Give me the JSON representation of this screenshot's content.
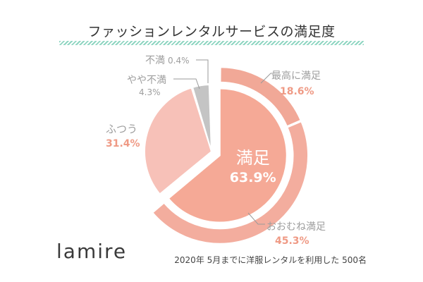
{
  "title": "ファッションレンタルサービスの満足度",
  "brand": "lamire",
  "footnote": "2020年 5月までに洋服レンタルを利用した 500名",
  "colors": {
    "satisfied": "#f5a996",
    "very_satisfied": "#f1a897",
    "somewhat_satisfied": "#f3ad9e",
    "neutral": "#f7c1b8",
    "somewhat_dissatisfied": "#c4c4c4",
    "dissatisfied": "#d0d0d0",
    "accent_text": "#ef9a85",
    "gray_text": "#9e9e9e",
    "stripe": "#8fd6c2"
  },
  "chart_data": {
    "type": "pie",
    "title": "ファッションレンタルサービスの満足度",
    "inner": [
      {
        "label": "満足",
        "value": 63.9,
        "value_label": "63.9%"
      },
      {
        "label": "ふつう",
        "value": 31.4,
        "value_label": "31.4%"
      },
      {
        "label": "やや不満",
        "value": 4.3,
        "value_label": "4.3%"
      },
      {
        "label": "不満",
        "value": 0.4,
        "value_label": "0.4%"
      }
    ],
    "outer": [
      {
        "label": "最高に満足",
        "value": 18.6,
        "value_label": "18.6%",
        "parent": "満足"
      },
      {
        "label": "おおむね満足",
        "value": 45.3,
        "value_label": "45.3%",
        "parent": "満足"
      }
    ],
    "legend": "none"
  }
}
